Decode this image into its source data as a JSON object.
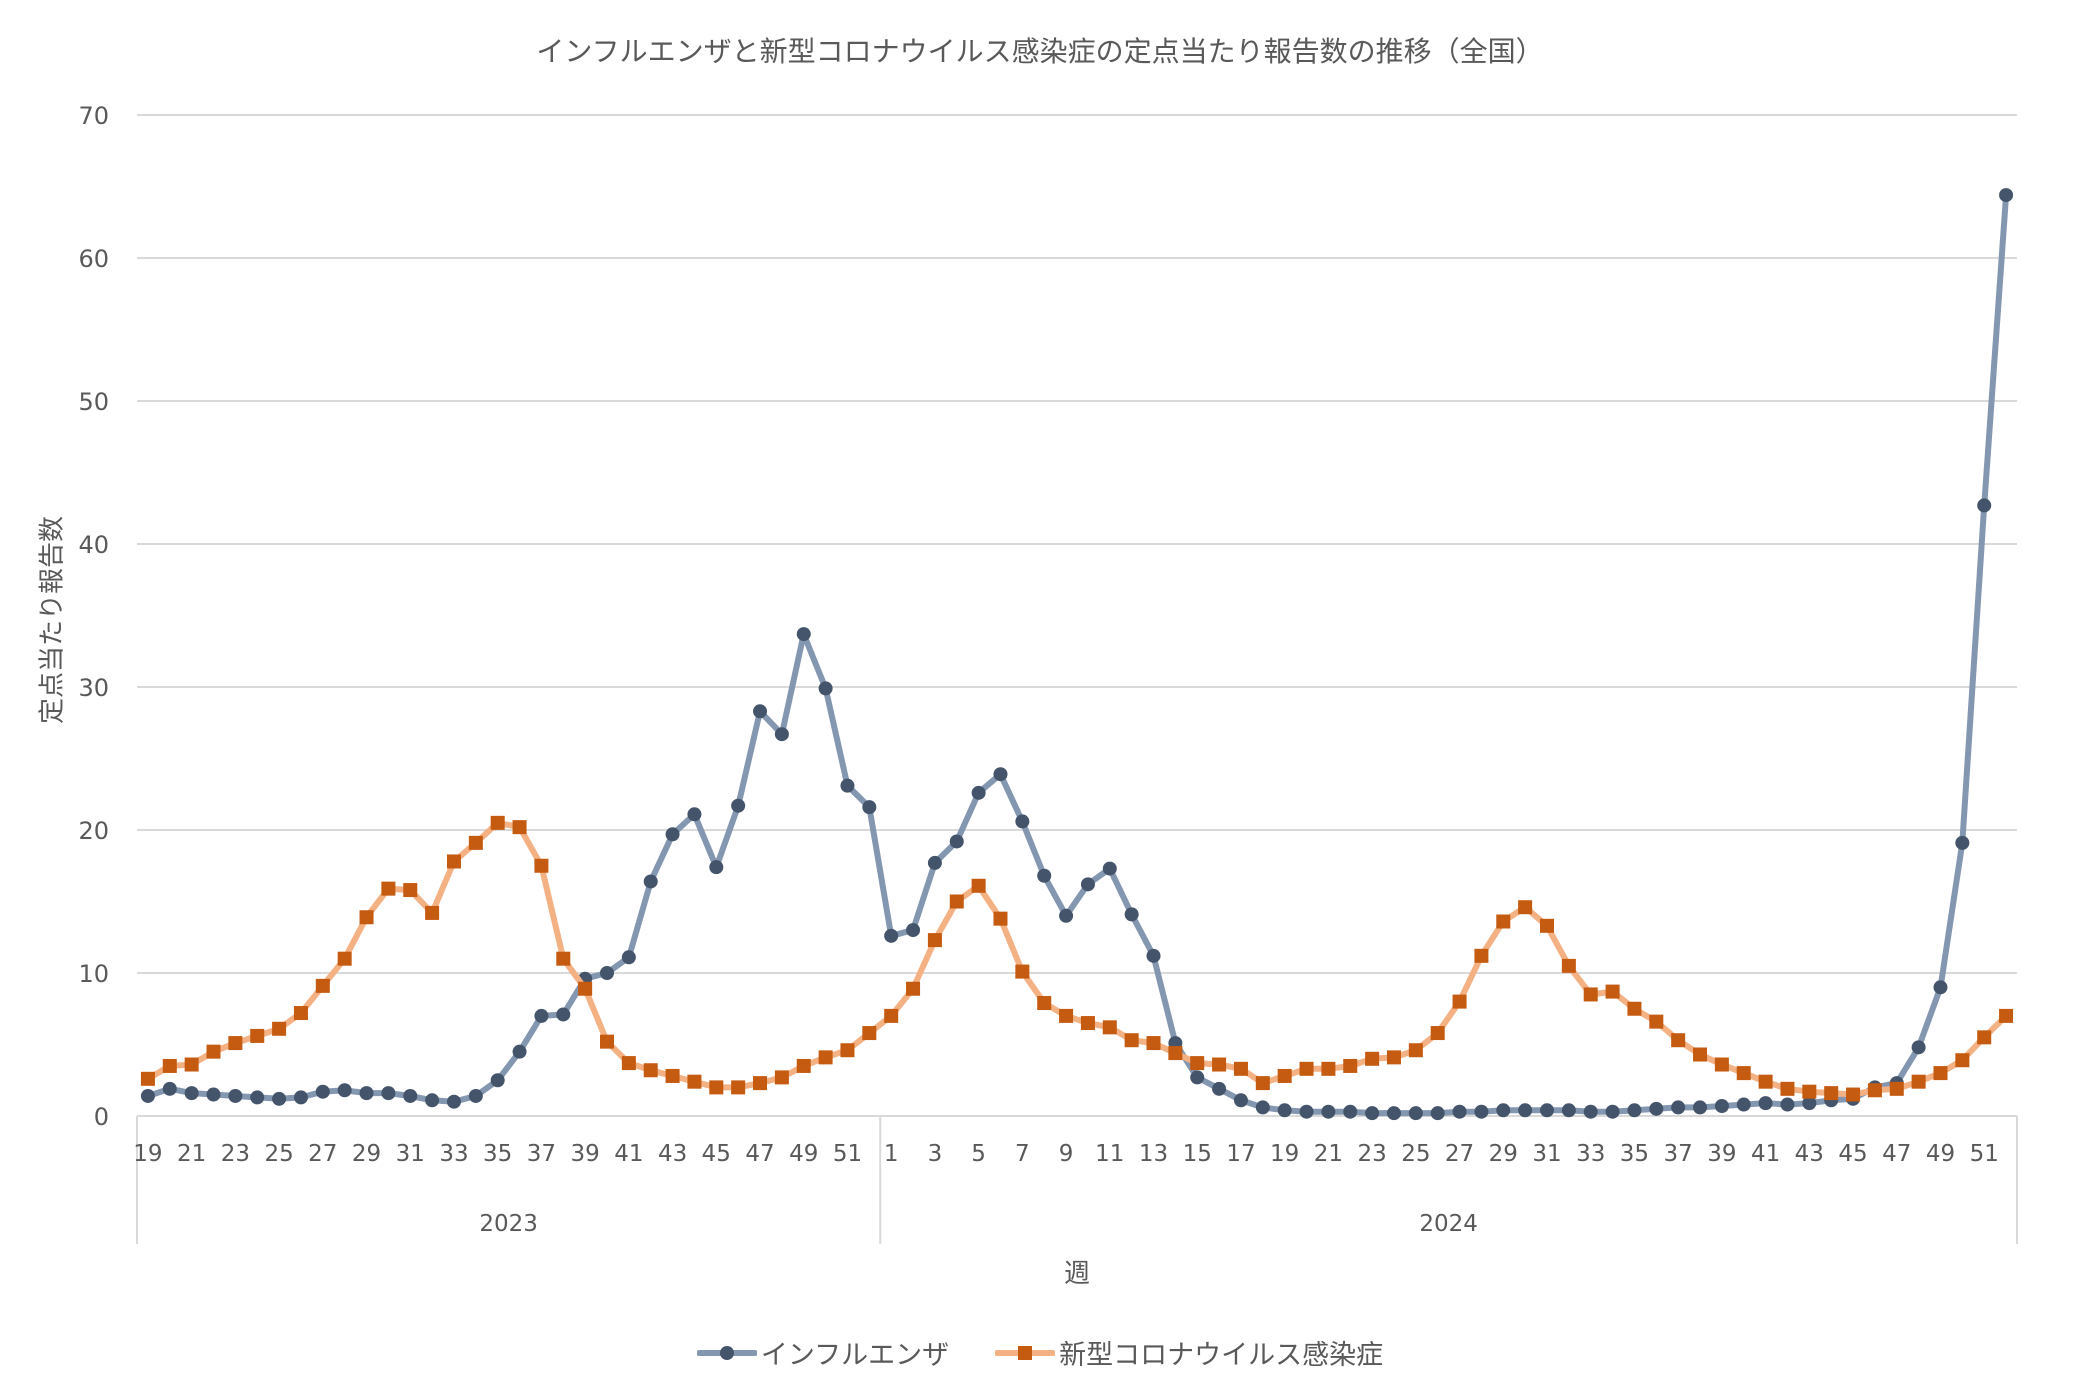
{
  "chart_data": {
    "type": "line",
    "title": "インフルエンザと新型コロナウイルス感染症の定点当たり報告数の推移（全国）",
    "xlabel": "週",
    "ylabel": "定点当たり報告数",
    "ylim": [
      0,
      70
    ],
    "yticks": [
      "0",
      "10",
      "20",
      "30",
      "40",
      "50",
      "60",
      "70"
    ],
    "grid": true,
    "legend_position": "bottom",
    "groups": [
      {
        "label": "2023",
        "weeks": [
          19,
          20,
          21,
          22,
          23,
          24,
          25,
          26,
          27,
          28,
          29,
          30,
          31,
          32,
          33,
          34,
          35,
          36,
          37,
          38,
          39,
          40,
          41,
          42,
          43,
          44,
          45,
          46,
          47,
          48,
          49,
          50,
          51,
          52
        ]
      },
      {
        "label": "2024",
        "weeks": [
          1,
          2,
          3,
          4,
          5,
          6,
          7,
          8,
          9,
          10,
          11,
          12,
          13,
          14,
          15,
          16,
          17,
          18,
          19,
          20,
          21,
          22,
          23,
          24,
          25,
          26,
          27,
          28,
          29,
          30,
          31,
          32,
          33,
          34,
          35,
          36,
          37,
          38,
          39,
          40,
          41,
          42,
          43,
          44,
          45,
          46,
          47,
          48,
          49,
          50,
          51,
          52
        ]
      }
    ],
    "series": [
      {
        "name": "インフルエンザ",
        "line_color": "#8497B0",
        "marker_color": "#44546A",
        "marker": "circle",
        "values": [
          1.4,
          1.9,
          1.6,
          1.5,
          1.4,
          1.3,
          1.2,
          1.3,
          1.7,
          1.8,
          1.6,
          1.6,
          1.4,
          1.1,
          1.0,
          1.4,
          2.5,
          4.5,
          7.0,
          7.1,
          9.6,
          10.0,
          11.1,
          16.4,
          19.7,
          21.1,
          17.4,
          21.7,
          28.3,
          26.7,
          33.7,
          29.9,
          23.1,
          21.6,
          12.6,
          13.0,
          17.7,
          19.2,
          22.6,
          23.9,
          20.6,
          16.8,
          14.0,
          16.2,
          17.3,
          14.1,
          11.2,
          5.1,
          2.7,
          1.9,
          1.1,
          0.6,
          0.4,
          0.3,
          0.3,
          0.3,
          0.2,
          0.2,
          0.2,
          0.2,
          0.3,
          0.3,
          0.4,
          0.4,
          0.4,
          0.4,
          0.3,
          0.3,
          0.4,
          0.5,
          0.6,
          0.6,
          0.7,
          0.8,
          0.9,
          0.8,
          0.9,
          1.1,
          1.2,
          2.0,
          2.3,
          4.8,
          9.0,
          19.1,
          42.7,
          64.4
        ]
      },
      {
        "name": "新型コロナウイルス感染症",
        "line_color": "#F4B183",
        "marker_color": "#C55A11",
        "marker": "square",
        "values": [
          2.6,
          3.5,
          3.6,
          4.5,
          5.1,
          5.6,
          6.1,
          7.2,
          9.1,
          11.0,
          13.9,
          15.9,
          15.8,
          14.2,
          17.8,
          19.1,
          20.5,
          20.2,
          17.5,
          11.0,
          8.9,
          5.2,
          3.7,
          3.2,
          2.8,
          2.4,
          2.0,
          2.0,
          2.3,
          2.7,
          3.5,
          4.1,
          4.6,
          5.8,
          7.0,
          8.9,
          12.3,
          15.0,
          16.1,
          13.8,
          10.1,
          7.9,
          7.0,
          6.5,
          6.2,
          5.3,
          5.1,
          4.4,
          3.7,
          3.6,
          3.3,
          2.3,
          2.8,
          3.3,
          3.3,
          3.5,
          4.0,
          4.1,
          4.6,
          5.8,
          8.0,
          11.2,
          13.6,
          14.6,
          13.3,
          10.5,
          8.5,
          8.7,
          7.5,
          6.6,
          5.3,
          4.3,
          3.6,
          3.0,
          2.4,
          1.9,
          1.7,
          1.6,
          1.5,
          1.8,
          1.9,
          2.4,
          3.0,
          3.9,
          5.5,
          7.0
        ]
      }
    ],
    "colors": {
      "grid": "#D9D9D9",
      "text": "#595959"
    }
  }
}
